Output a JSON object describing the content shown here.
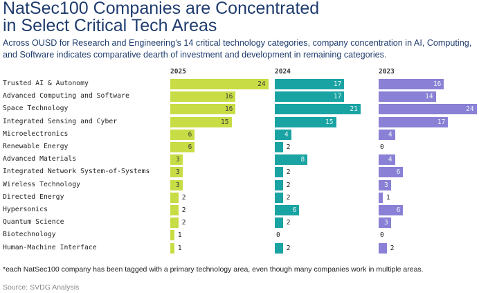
{
  "header": {
    "title_line1": "NatSec100 Companies are Concentrated",
    "title_line2": "in Select Critical Tech Areas",
    "subtitle": "Across OUSD for Research and Engineering's 14 critical technology categories, company concentration in AI, Computing, and Software indicates comparative dearth of investment and development in remaining categories."
  },
  "footer": {
    "footnote": "*each NatSec100 company has been tagged with a primary technology area, even though many companies work in multiple areas.",
    "source": "Source: SVDG Analysis"
  },
  "chart_data": {
    "type": "bar",
    "orientation": "horizontal",
    "title": "NatSec100 Companies are Concentrated in Select Critical Tech Areas",
    "categories": [
      "Trusted AI & Autonomy",
      "Advanced Computing and Software",
      "Space Technology",
      "Integrated Sensing and Cyber",
      "Microelectronics",
      "Renewable Energy",
      "Advanced Materials",
      "Integrated Network System-of-Systems",
      "Wireless Technology",
      "Directed Energy",
      "Hypersonics",
      "Quantum Science",
      "Biotechnology",
      "Human-Machine Interface"
    ],
    "series": [
      {
        "name": "2025",
        "color": "#c8dc45",
        "values": [
          24,
          16,
          16,
          15,
          6,
          6,
          3,
          3,
          3,
          2,
          2,
          2,
          1,
          1
        ]
      },
      {
        "name": "2024",
        "color": "#1aa3a3",
        "values": [
          17,
          17,
          21,
          15,
          4,
          2,
          8,
          2,
          2,
          2,
          6,
          2,
          0,
          2
        ]
      },
      {
        "name": "2023",
        "color": "#8a80d6",
        "values": [
          16,
          14,
          24,
          17,
          4,
          0,
          4,
          6,
          3,
          1,
          6,
          3,
          0,
          2
        ]
      }
    ],
    "xlim": [
      0,
      24
    ],
    "grid": false,
    "legend": "none (column headers)"
  }
}
